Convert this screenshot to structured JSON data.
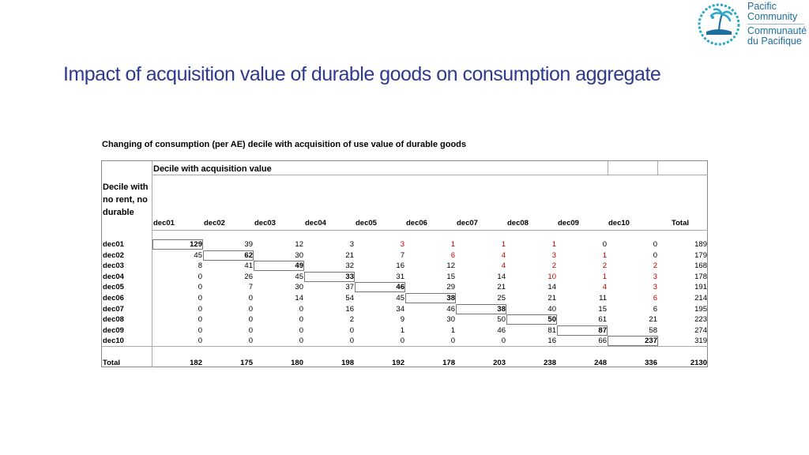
{
  "logo": {
    "line1": "Pacific",
    "line2": "Community",
    "line3": "Communauté",
    "line4": "du Pacifique",
    "colors": {
      "navy": "#1f6f9e",
      "teal": "#2aa7c9"
    }
  },
  "title": "Impact of acquisition value of durable goods on consumption aggregate",
  "subtitle": "Changing of consumption (per AE) decile with acquisition of use value of durable goods",
  "table": {
    "col_group_header": "Decile with acquisition value",
    "row_group_header": "Decile with no rent, no durable",
    "columns": [
      "dec01",
      "dec02",
      "dec03",
      "dec04",
      "dec05",
      "dec06",
      "dec07",
      "dec08",
      "dec09",
      "dec10",
      "Total"
    ],
    "rows": [
      {
        "label": "dec01",
        "values": [
          "129",
          "39",
          "12",
          "3",
          "3",
          "1",
          "1",
          "1",
          "0",
          "0",
          "189"
        ]
      },
      {
        "label": "dec02",
        "values": [
          "45",
          "62",
          "30",
          "21",
          "7",
          "6",
          "4",
          "3",
          "1",
          "0",
          "179"
        ]
      },
      {
        "label": "dec03",
        "values": [
          "8",
          "41",
          "49",
          "32",
          "16",
          "12",
          "4",
          "2",
          "2",
          "2",
          "168"
        ]
      },
      {
        "label": "dec04",
        "values": [
          "0",
          "26",
          "45",
          "33",
          "31",
          "15",
          "14",
          "10",
          "1",
          "3",
          "178"
        ]
      },
      {
        "label": "dec05",
        "values": [
          "0",
          "7",
          "30",
          "37",
          "46",
          "29",
          "21",
          "14",
          "4",
          "3",
          "191"
        ]
      },
      {
        "label": "dec06",
        "values": [
          "0",
          "0",
          "14",
          "54",
          "45",
          "38",
          "25",
          "21",
          "11",
          "6",
          "214"
        ]
      },
      {
        "label": "dec07",
        "values": [
          "0",
          "0",
          "0",
          "16",
          "34",
          "46",
          "38",
          "40",
          "15",
          "6",
          "195"
        ]
      },
      {
        "label": "dec08",
        "values": [
          "0",
          "0",
          "0",
          "2",
          "9",
          "30",
          "50",
          "50",
          "61",
          "21",
          "223"
        ]
      },
      {
        "label": "dec09",
        "values": [
          "0",
          "0",
          "0",
          "0",
          "1",
          "1",
          "46",
          "81",
          "87",
          "58",
          "274"
        ]
      },
      {
        "label": "dec10",
        "values": [
          "0",
          "0",
          "0",
          "0",
          "0",
          "0",
          "0",
          "16",
          "66",
          "237",
          "319"
        ]
      }
    ],
    "red_cells": [
      [
        0,
        4
      ],
      [
        0,
        5
      ],
      [
        0,
        6
      ],
      [
        0,
        7
      ],
      [
        1,
        5
      ],
      [
        1,
        6
      ],
      [
        1,
        7
      ],
      [
        1,
        8
      ],
      [
        2,
        6
      ],
      [
        2,
        7
      ],
      [
        2,
        8
      ],
      [
        2,
        9
      ],
      [
        3,
        7
      ],
      [
        3,
        8
      ],
      [
        3,
        9
      ],
      [
        4,
        8
      ],
      [
        4,
        9
      ],
      [
        5,
        9
      ]
    ],
    "total_row": {
      "label": "Total",
      "values": [
        "182",
        "175",
        "180",
        "198",
        "192",
        "178",
        "203",
        "238",
        "248",
        "336",
        "2130"
      ]
    },
    "red_color": "#c00000"
  }
}
